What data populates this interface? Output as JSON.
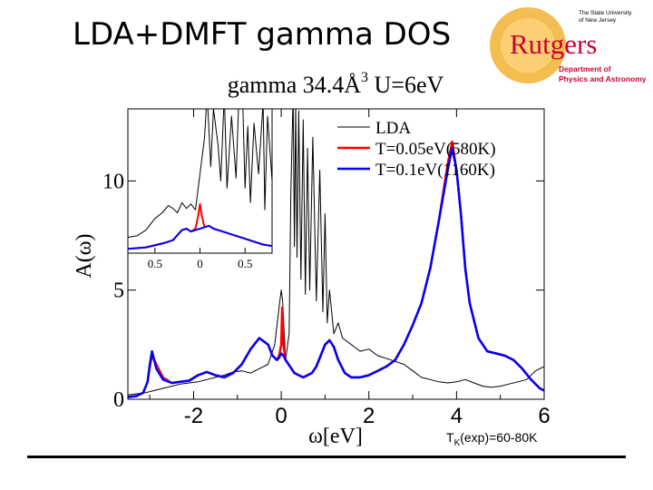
{
  "slide": {
    "title": "LDA+DMFT gamma DOS",
    "note_prefix": "T",
    "note_sub": "K",
    "note_suffix": "(exp)=60-80K"
  },
  "logo": {
    "top_line1": "The State University",
    "top_line2": "of New Jersey",
    "name": "Rutgers",
    "dept_line1": "Department of",
    "dept_line2": "Physics and Astronomy",
    "red": "#cc0033",
    "gold": "#f2b233"
  },
  "chart_data": [
    {
      "type": "line",
      "title": "gamma 34.4Å",
      "title_sup": "3",
      "title_tail": " U=6eV",
      "xlabel": "ω[eV]",
      "ylabel": "A(ω)",
      "xlim": [
        -3.5,
        6
      ],
      "ylim": [
        0,
        13.3
      ],
      "xticks": [
        -2,
        0,
        2,
        4,
        6
      ],
      "yticks": [
        0,
        5,
        10
      ],
      "legend_position": "top-right",
      "series": [
        {
          "name": "LDA",
          "color": "#000000",
          "width": 1,
          "x": [
            -3.5,
            -3.3,
            -3.1,
            -2.9,
            -2.7,
            -2.5,
            -2.3,
            -2.1,
            -1.9,
            -1.7,
            -1.5,
            -1.3,
            -1.1,
            -0.9,
            -0.7,
            -0.5,
            -0.3,
            -0.15,
            -0.05,
            0.0,
            0.03,
            0.1,
            0.18,
            0.22,
            0.27,
            0.3,
            0.33,
            0.36,
            0.4,
            0.45,
            0.5,
            0.55,
            0.6,
            0.65,
            0.72,
            0.8,
            0.88,
            0.95,
            1.0,
            1.05,
            1.1,
            1.2,
            1.3,
            1.4,
            1.6,
            1.8,
            2.0,
            2.2,
            2.5,
            2.8,
            3.0,
            3.2,
            3.4,
            3.6,
            3.8,
            4.0,
            4.2,
            4.4,
            4.6,
            4.8,
            5.0,
            5.2,
            5.4,
            5.6,
            5.8,
            6.0
          ],
          "y": [
            0.2,
            0.25,
            0.3,
            0.4,
            0.5,
            0.6,
            0.7,
            0.75,
            0.8,
            0.9,
            1.0,
            1.1,
            1.25,
            1.3,
            1.2,
            1.4,
            1.6,
            2.5,
            4.2,
            5.0,
            4.5,
            1.8,
            3.0,
            9.5,
            14,
            7,
            13.5,
            6.5,
            13.2,
            5.5,
            12.8,
            4.8,
            11.5,
            5.0,
            12.0,
            4.5,
            10.5,
            4.0,
            8.5,
            3.5,
            5.0,
            3.0,
            3.5,
            2.8,
            2.5,
            2.2,
            2.3,
            2.0,
            1.8,
            1.6,
            1.3,
            1.0,
            0.9,
            0.8,
            0.75,
            0.8,
            0.9,
            0.75,
            0.6,
            0.55,
            0.6,
            0.7,
            0.8,
            0.9,
            1.3,
            1.5
          ]
        },
        {
          "name": "T=0.05eV(580K)",
          "color": "#ff0000",
          "width": 2.5,
          "x": [
            -3.5,
            -3.3,
            -3.15,
            -3.05,
            -3.0,
            -2.95,
            -2.85,
            -2.7,
            -2.5,
            -2.3,
            -2.1,
            -1.9,
            -1.7,
            -1.5,
            -1.3,
            -1.1,
            -0.9,
            -0.7,
            -0.5,
            -0.3,
            -0.2,
            -0.1,
            -0.05,
            0.0,
            0.02,
            0.05,
            0.1,
            0.2,
            0.3,
            0.5,
            0.7,
            0.8,
            0.9,
            1.0,
            1.1,
            1.2,
            1.3,
            1.45,
            1.6,
            1.8,
            2.0,
            2.2,
            2.4,
            2.6,
            2.8,
            3.0,
            3.2,
            3.4,
            3.6,
            3.8,
            3.9,
            4.0,
            4.1,
            4.2,
            4.3,
            4.5,
            4.7,
            4.9,
            5.1,
            5.3,
            5.5,
            5.7,
            5.9,
            6.0
          ],
          "y": [
            0.1,
            0.15,
            0.3,
            0.8,
            1.5,
            2.0,
            1.6,
            1.0,
            0.75,
            0.8,
            0.85,
            1.1,
            1.25,
            1.1,
            1.0,
            1.2,
            1.6,
            2.3,
            2.8,
            2.5,
            2.0,
            1.8,
            2.0,
            2.5,
            4.2,
            2.5,
            1.8,
            1.5,
            1.2,
            1.0,
            1.2,
            1.5,
            2.0,
            2.5,
            2.7,
            2.4,
            1.8,
            1.2,
            1.0,
            1.0,
            1.1,
            1.3,
            1.5,
            1.8,
            2.5,
            3.4,
            4.4,
            6.0,
            8.2,
            10.8,
            11.8,
            10.5,
            8.5,
            6.0,
            4.4,
            2.8,
            2.2,
            2.1,
            2.0,
            1.8,
            1.4,
            0.9,
            0.5,
            0.4
          ]
        },
        {
          "name": "T=0.1eV(1160K)",
          "color": "#0000ff",
          "width": 2.5,
          "x": [
            -3.5,
            -3.3,
            -3.15,
            -3.05,
            -3.0,
            -2.95,
            -2.85,
            -2.7,
            -2.5,
            -2.3,
            -2.1,
            -1.9,
            -1.7,
            -1.5,
            -1.3,
            -1.1,
            -0.9,
            -0.7,
            -0.5,
            -0.3,
            -0.2,
            -0.1,
            -0.05,
            0.0,
            0.05,
            0.1,
            0.2,
            0.3,
            0.5,
            0.7,
            0.8,
            0.9,
            1.0,
            1.1,
            1.2,
            1.3,
            1.45,
            1.6,
            1.8,
            2.0,
            2.2,
            2.4,
            2.6,
            2.8,
            3.0,
            3.2,
            3.4,
            3.6,
            3.8,
            3.9,
            4.0,
            4.1,
            4.2,
            4.3,
            4.5,
            4.7,
            4.9,
            5.1,
            5.3,
            5.5,
            5.7,
            5.9,
            6.0
          ],
          "y": [
            0.1,
            0.15,
            0.3,
            0.8,
            1.6,
            2.2,
            1.4,
            0.9,
            0.75,
            0.8,
            0.85,
            1.1,
            1.25,
            1.1,
            1.0,
            1.2,
            1.6,
            2.3,
            2.8,
            2.5,
            2.0,
            1.8,
            1.9,
            2.1,
            2.0,
            1.8,
            1.5,
            1.2,
            1.0,
            1.2,
            1.5,
            2.0,
            2.5,
            2.7,
            2.4,
            1.8,
            1.2,
            1.0,
            1.0,
            1.1,
            1.3,
            1.5,
            1.8,
            2.5,
            3.4,
            4.4,
            6.0,
            8.2,
            10.5,
            11.5,
            10.5,
            8.5,
            6.0,
            4.4,
            2.8,
            2.2,
            2.1,
            2.0,
            1.8,
            1.4,
            0.9,
            0.5,
            0.4
          ]
        }
      ]
    },
    {
      "type": "line",
      "role": "inset",
      "xlim": [
        -0.8,
        0.8
      ],
      "ylim": [
        0,
        10
      ],
      "xtick_values": [
        -0.5,
        0,
        0.5
      ],
      "xtick_labels": [
        "0.5",
        "0",
        "0.5"
      ],
      "series": [
        {
          "name": "LDA",
          "color": "#000000",
          "width": 1,
          "x": [
            -0.8,
            -0.7,
            -0.6,
            -0.5,
            -0.42,
            -0.35,
            -0.3,
            -0.25,
            -0.2,
            -0.15,
            -0.1,
            -0.05,
            0.0,
            0.05,
            0.08,
            0.12,
            0.15,
            0.2,
            0.23,
            0.27,
            0.3,
            0.35,
            0.4,
            0.43,
            0.47,
            0.5,
            0.53,
            0.56,
            0.6,
            0.65,
            0.7,
            0.72,
            0.75,
            0.8
          ],
          "y": [
            1.1,
            1.2,
            1.6,
            2.4,
            2.8,
            3.3,
            3.1,
            2.8,
            3.5,
            3.1,
            3.4,
            3.0,
            5.5,
            8.0,
            11.0,
            6.0,
            10.0,
            7.5,
            5.0,
            11.0,
            4.5,
            9.5,
            5.2,
            10.5,
            11.5,
            4.5,
            8.8,
            3.5,
            9.0,
            5.5,
            10.5,
            3.0,
            9.5,
            5.0
          ]
        },
        {
          "name": "T=0.05eV(580K)",
          "color": "#ff0000",
          "width": 2,
          "x": [
            -0.8,
            -0.6,
            -0.4,
            -0.3,
            -0.2,
            -0.15,
            -0.1,
            -0.05,
            -0.02,
            0.0,
            0.02,
            0.05,
            0.1,
            0.15,
            0.2,
            0.3,
            0.4,
            0.5,
            0.6,
            0.7,
            0.8
          ],
          "y": [
            0.3,
            0.4,
            0.7,
            0.9,
            1.6,
            1.7,
            1.5,
            1.7,
            2.6,
            3.4,
            2.6,
            1.8,
            1.9,
            1.7,
            1.6,
            1.4,
            1.2,
            1.0,
            0.8,
            0.6,
            0.5
          ]
        },
        {
          "name": "T=0.1eV(1160K)",
          "color": "#0000ff",
          "width": 2,
          "x": [
            -0.8,
            -0.6,
            -0.4,
            -0.3,
            -0.2,
            -0.15,
            -0.1,
            -0.05,
            0.0,
            0.05,
            0.1,
            0.15,
            0.2,
            0.3,
            0.4,
            0.5,
            0.6,
            0.7,
            0.8
          ],
          "y": [
            0.3,
            0.4,
            0.7,
            0.9,
            1.6,
            1.7,
            1.5,
            1.6,
            1.7,
            1.8,
            1.9,
            1.7,
            1.6,
            1.4,
            1.2,
            1.0,
            0.8,
            0.6,
            0.5
          ]
        }
      ]
    }
  ]
}
